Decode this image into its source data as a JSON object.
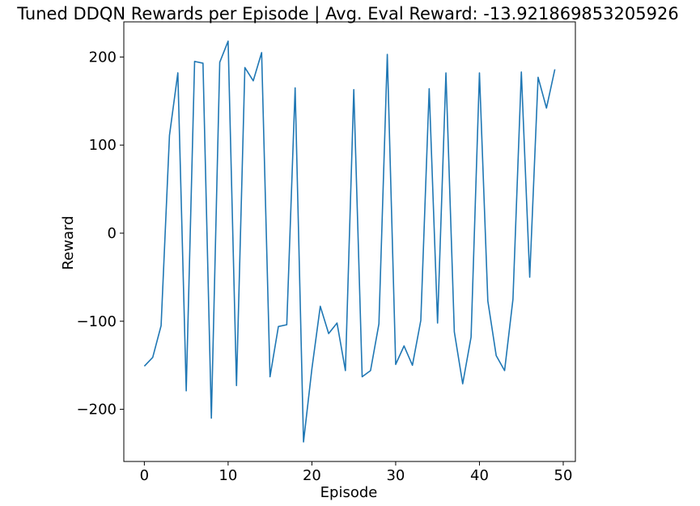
{
  "chart_data": {
    "type": "line",
    "title": "Tuned DDQN Rewards per Episode | Avg. Eval Reward: -13.921869853205926",
    "xlabel": "Episode",
    "ylabel": "Reward",
    "xlim": [
      -2.45,
      51.45
    ],
    "ylim": [
      -259.2,
      239.9
    ],
    "xticks": [
      0,
      10,
      20,
      30,
      40,
      50
    ],
    "yticks": [
      -200,
      -100,
      0,
      100,
      200
    ],
    "xtick_labels": [
      "0",
      "10",
      "20",
      "30",
      "40",
      "50"
    ],
    "ytick_labels": [
      "−200",
      "−100",
      "0",
      "100",
      "200"
    ],
    "grid": false,
    "series": [
      {
        "color": "#1f77b4",
        "x": [
          0,
          1,
          2,
          3,
          4,
          5,
          6,
          7,
          8,
          9,
          10,
          11,
          12,
          13,
          14,
          15,
          16,
          17,
          18,
          19,
          20,
          21,
          22,
          23,
          24,
          25,
          26,
          27,
          28,
          29,
          30,
          31,
          32,
          33,
          34,
          35,
          36,
          37,
          38,
          39,
          40,
          41,
          42,
          43,
          44,
          45,
          46,
          47,
          48,
          49
        ],
        "y": [
          -151,
          -141,
          -105,
          111,
          182,
          -179,
          195,
          193,
          -210,
          194,
          218,
          -173,
          188,
          173,
          205,
          -163,
          -106,
          -104,
          165,
          -237,
          -154,
          -83,
          -114,
          -102,
          -156,
          163,
          -163,
          -156,
          -103,
          203,
          -149,
          -128,
          -150,
          -99,
          164,
          -102,
          182,
          -112,
          -171,
          -118,
          182,
          -77,
          -139,
          -156,
          -75,
          183,
          -50,
          177,
          142,
          186
        ]
      }
    ]
  }
}
